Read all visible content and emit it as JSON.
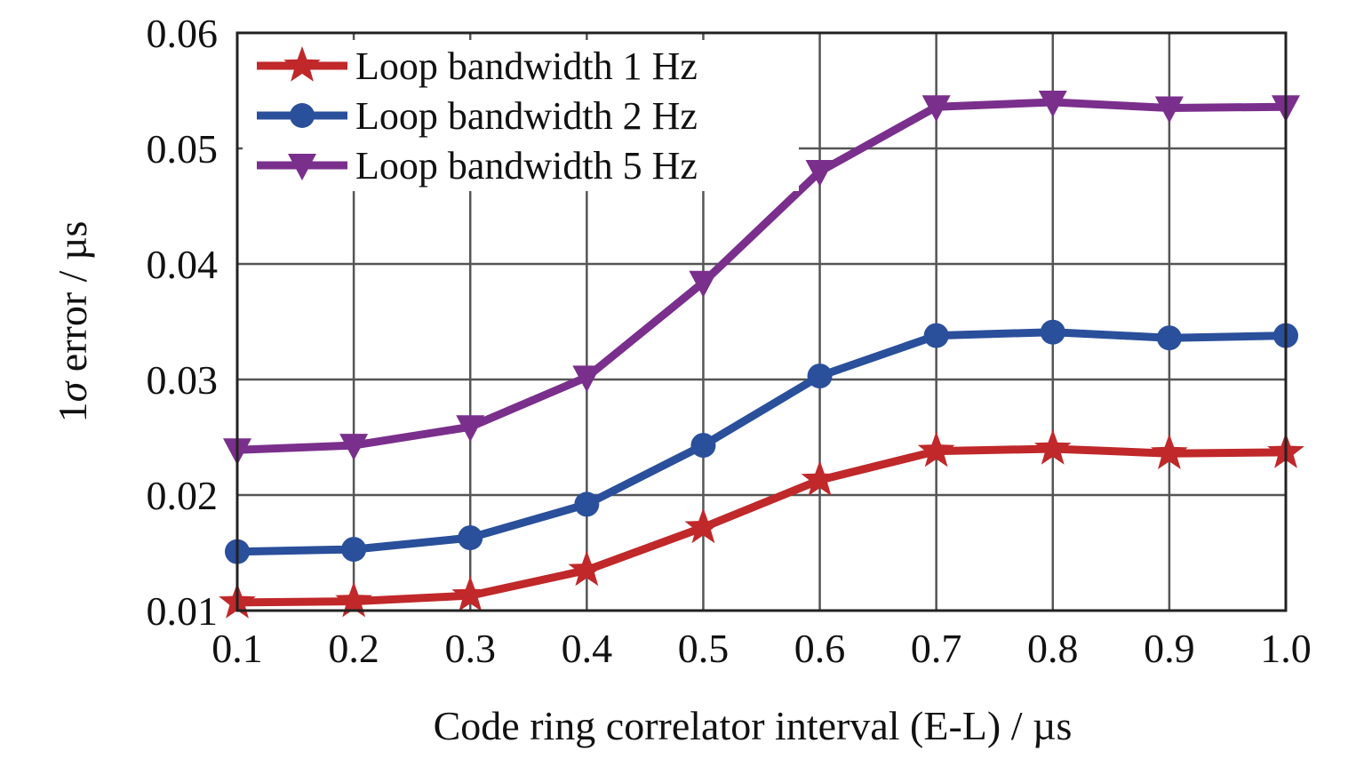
{
  "chart_data": {
    "type": "line",
    "title": "",
    "xlabel": "Code ring correlator interval (E-L) / µs",
    "ylabel_prefix": "1",
    "ylabel_symbol": "σ",
    "ylabel_suffix": " error / µs",
    "x": [
      0.1,
      0.2,
      0.3,
      0.4,
      0.5,
      0.6,
      0.7,
      0.8,
      0.9,
      1.0
    ],
    "xlim": [
      0.1,
      1.0
    ],
    "ylim": [
      0.01,
      0.06
    ],
    "xticks": [
      "0.1",
      "0.2",
      "0.3",
      "0.4",
      "0.5",
      "0.6",
      "0.7",
      "0.8",
      "0.9",
      "1.0"
    ],
    "yticks": [
      "0.01",
      "0.02",
      "0.03",
      "0.04",
      "0.05",
      "0.06"
    ],
    "grid": true,
    "legend_position": "top-left",
    "series": [
      {
        "name": "Loop bandwidth 1 Hz",
        "color": "#c0282a",
        "marker": "star",
        "values": [
          0.0107,
          0.0108,
          0.0113,
          0.0135,
          0.0172,
          0.0213,
          0.0238,
          0.024,
          0.0236,
          0.0237
        ]
      },
      {
        "name": "Loop bandwidth 2 Hz",
        "color": "#2a4f9b",
        "marker": "circle",
        "values": [
          0.0151,
          0.0153,
          0.0163,
          0.0192,
          0.0243,
          0.0303,
          0.0338,
          0.0341,
          0.0336,
          0.0338
        ]
      },
      {
        "name": "Loop bandwidth 5 Hz",
        "color": "#7a2f8c",
        "marker": "triangle-down",
        "values": [
          0.0239,
          0.0243,
          0.0259,
          0.0302,
          0.0384,
          0.048,
          0.0536,
          0.054,
          0.0535,
          0.0536
        ]
      }
    ]
  }
}
